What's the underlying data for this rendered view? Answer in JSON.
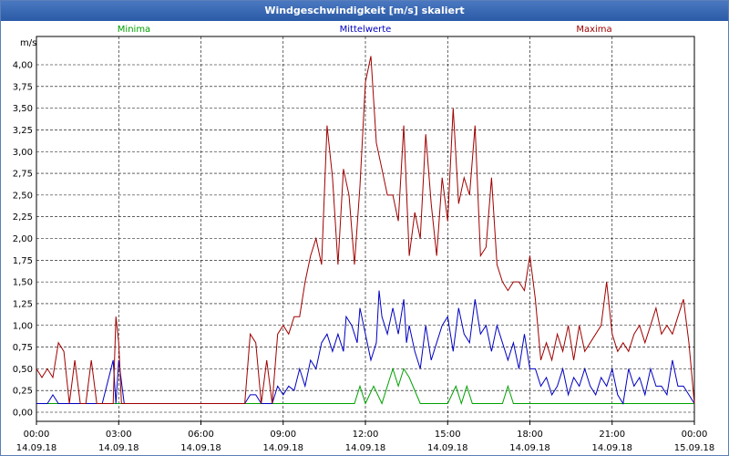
{
  "window": {
    "title": "Windgeschwindigkeit [m/s] skaliert"
  },
  "chart_data": {
    "type": "line",
    "title": "Windgeschwindigkeit [m/s] skaliert",
    "ylabel": "m/s",
    "ylim": [
      0,
      4.2
    ],
    "xlim_hours": [
      0,
      24
    ],
    "grid": true,
    "y_ticks": [
      "0,00",
      "0,25",
      "0,50",
      "0,75",
      "1,00",
      "1,25",
      "1,50",
      "1,75",
      "2,00",
      "2,25",
      "2,50",
      "2,75",
      "3,00",
      "3,25",
      "3,50",
      "3,75",
      "4,00"
    ],
    "x_ticks": [
      {
        "time": "00:00",
        "date": "14.09.18"
      },
      {
        "time": "03:00",
        "date": "14.09.18"
      },
      {
        "time": "06:00",
        "date": "14.09.18"
      },
      {
        "time": "09:00",
        "date": "14.09.18"
      },
      {
        "time": "12:00",
        "date": "14.09.18"
      },
      {
        "time": "15:00",
        "date": "14.09.18"
      },
      {
        "time": "18:00",
        "date": "14.09.18"
      },
      {
        "time": "21:00",
        "date": "14.09.18"
      },
      {
        "time": "00:00",
        "date": "15.09.18"
      }
    ],
    "series": [
      {
        "name": "Minima",
        "color": "#00a000",
        "x": [
          0,
          0.6,
          1.2,
          1.6,
          2.0,
          2.4,
          2.8,
          3.0,
          3.2,
          4,
          5,
          6,
          7,
          7.4,
          7.8,
          8.2,
          8.6,
          9.0,
          9.5,
          10,
          10.5,
          11,
          11.3,
          11.6,
          11.8,
          12,
          12.3,
          12.6,
          12.8,
          13.0,
          13.2,
          13.4,
          13.6,
          14,
          14.5,
          15,
          15.3,
          15.5,
          15.7,
          15.9,
          16,
          16.5,
          17,
          17.2,
          17.4,
          18,
          19,
          20,
          21,
          22,
          23,
          23.6,
          24
        ],
        "values": [
          0.1,
          0.1,
          0.1,
          0.1,
          0.1,
          0.1,
          0.1,
          0.1,
          0.1,
          0.1,
          0.1,
          0.1,
          0.1,
          0.1,
          0.1,
          0.1,
          0.1,
          0.1,
          0.1,
          0.1,
          0.1,
          0.1,
          0.1,
          0.1,
          0.3,
          0.1,
          0.3,
          0.1,
          0.3,
          0.5,
          0.3,
          0.5,
          0.4,
          0.1,
          0.1,
          0.1,
          0.3,
          0.1,
          0.3,
          0.1,
          0.1,
          0.1,
          0.1,
          0.3,
          0.1,
          0.1,
          0.1,
          0.1,
          0.1,
          0.1,
          0.1,
          0.1,
          0.1
        ]
      },
      {
        "name": "Mittelwerte",
        "color": "#0000c0",
        "x": [
          0,
          0.4,
          0.6,
          0.8,
          1.0,
          2.0,
          2.4,
          2.8,
          2.9,
          3.0,
          3.2,
          4,
          5,
          6,
          7,
          7.6,
          7.8,
          8.0,
          8.2,
          8.6,
          8.8,
          9.0,
          9.2,
          9.4,
          9.6,
          9.8,
          10.0,
          10.2,
          10.4,
          10.6,
          10.8,
          11.0,
          11.2,
          11.3,
          11.5,
          11.7,
          11.8,
          12.0,
          12.2,
          12.4,
          12.5,
          12.6,
          12.8,
          13.0,
          13.2,
          13.4,
          13.5,
          13.6,
          13.8,
          14.0,
          14.2,
          14.4,
          14.6,
          14.8,
          15.0,
          15.2,
          15.4,
          15.6,
          15.8,
          16.0,
          16.2,
          16.4,
          16.6,
          16.8,
          17.0,
          17.2,
          17.4,
          17.6,
          17.8,
          18.0,
          18.2,
          18.4,
          18.6,
          18.8,
          19.0,
          19.2,
          19.4,
          19.6,
          19.8,
          20.0,
          20.2,
          20.4,
          20.6,
          20.8,
          21.0,
          21.2,
          21.4,
          21.6,
          21.8,
          22.0,
          22.2,
          22.4,
          22.6,
          22.8,
          23.0,
          23.2,
          23.4,
          23.6,
          23.8,
          24
        ],
        "values": [
          0.1,
          0.1,
          0.2,
          0.1,
          0.1,
          0.1,
          0.1,
          0.6,
          0.1,
          0.6,
          0.1,
          0.1,
          0.1,
          0.1,
          0.1,
          0.1,
          0.2,
          0.2,
          0.1,
          0.1,
          0.3,
          0.2,
          0.3,
          0.25,
          0.5,
          0.3,
          0.6,
          0.5,
          0.8,
          0.9,
          0.7,
          0.9,
          0.7,
          1.1,
          1.0,
          0.8,
          1.2,
          0.9,
          0.6,
          0.8,
          1.4,
          1.1,
          0.9,
          1.2,
          0.9,
          1.3,
          0.8,
          1.0,
          0.7,
          0.5,
          1.0,
          0.6,
          0.8,
          1.0,
          1.1,
          0.7,
          1.2,
          0.9,
          0.8,
          1.3,
          0.9,
          1.0,
          0.7,
          1.0,
          0.8,
          0.6,
          0.8,
          0.5,
          0.9,
          0.5,
          0.5,
          0.3,
          0.4,
          0.2,
          0.3,
          0.5,
          0.2,
          0.4,
          0.3,
          0.5,
          0.3,
          0.2,
          0.4,
          0.3,
          0.5,
          0.2,
          0.1,
          0.5,
          0.3,
          0.4,
          0.2,
          0.5,
          0.3,
          0.3,
          0.2,
          0.6,
          0.3,
          0.3,
          0.2,
          0.1
        ],
        "_comment": ""
      },
      {
        "name": "Maxima",
        "color": "#a00000",
        "x": [
          0,
          0.2,
          0.4,
          0.6,
          0.8,
          1.0,
          1.2,
          1.4,
          1.6,
          1.8,
          2.0,
          2.2,
          2.4,
          2.6,
          2.8,
          2.9,
          3.0,
          3.1,
          3.2,
          4,
          5,
          6,
          7,
          7.6,
          7.8,
          8.0,
          8.2,
          8.4,
          8.6,
          8.8,
          9.0,
          9.2,
          9.4,
          9.6,
          9.8,
          10.0,
          10.2,
          10.4,
          10.6,
          10.8,
          11.0,
          11.2,
          11.4,
          11.6,
          11.8,
          12.0,
          12.2,
          12.4,
          12.6,
          12.8,
          13.0,
          13.2,
          13.4,
          13.6,
          13.8,
          14.0,
          14.2,
          14.4,
          14.6,
          14.8,
          15.0,
          15.2,
          15.4,
          15.6,
          15.8,
          16.0,
          16.2,
          16.4,
          16.6,
          16.8,
          17.0,
          17.2,
          17.4,
          17.6,
          17.8,
          18.0,
          18.2,
          18.4,
          18.6,
          18.8,
          19.0,
          19.2,
          19.4,
          19.6,
          19.8,
          20.0,
          20.2,
          20.4,
          20.6,
          20.8,
          21.0,
          21.2,
          21.4,
          21.6,
          21.8,
          22.0,
          22.2,
          22.4,
          22.6,
          22.8,
          23.0,
          23.2,
          23.4,
          23.6,
          23.8,
          24
        ],
        "values": [
          0.5,
          0.4,
          0.5,
          0.4,
          0.8,
          0.7,
          0.1,
          0.6,
          0.1,
          0.1,
          0.6,
          0.1,
          0.1,
          0.1,
          0.1,
          1.1,
          0.8,
          0.1,
          0.1,
          0.1,
          0.1,
          0.1,
          0.1,
          0.1,
          0.9,
          0.8,
          0.1,
          0.6,
          0.1,
          0.9,
          1.0,
          0.9,
          1.1,
          1.1,
          1.5,
          1.8,
          2.0,
          1.7,
          3.3,
          2.7,
          1.7,
          2.8,
          2.5,
          1.7,
          2.6,
          3.8,
          4.1,
          3.1,
          2.8,
          2.5,
          2.5,
          2.2,
          3.3,
          1.8,
          2.3,
          2.0,
          3.2,
          2.4,
          1.8,
          2.7,
          2.2,
          3.5,
          2.4,
          2.7,
          2.5,
          3.3,
          1.8,
          1.9,
          2.7,
          1.7,
          1.5,
          1.4,
          1.5,
          1.5,
          1.4,
          1.8,
          1.3,
          0.6,
          0.8,
          0.6,
          0.9,
          0.7,
          1.0,
          0.6,
          1.0,
          0.7,
          0.8,
          0.9,
          1.0,
          1.5,
          0.9,
          0.7,
          0.8,
          0.7,
          0.9,
          1.0,
          0.8,
          1.0,
          1.2,
          0.9,
          1.0,
          0.9,
          1.1,
          1.3,
          0.8,
          0.1
        ]
      }
    ]
  }
}
